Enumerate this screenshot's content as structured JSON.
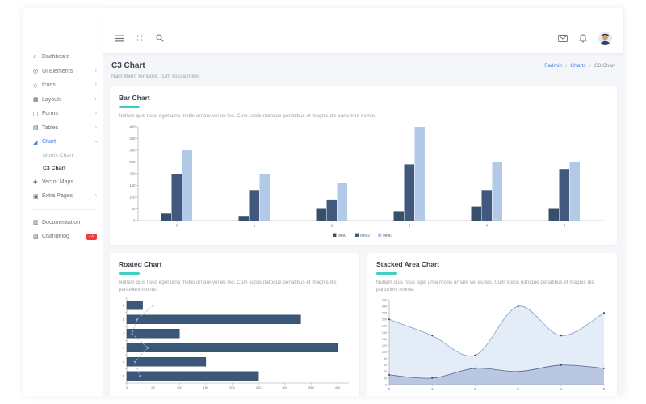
{
  "colors": {
    "accent_teal": "#40cdc6",
    "link_blue": "#4a7fd6",
    "sidebar_active_blue": "#3f78e0",
    "badge_red": "#ef3c3c",
    "content_bg": "#f4f6f9",
    "bar_dark1": "#36506c",
    "bar_dark2": "#41597c",
    "bar_light": "#b3c9e8"
  },
  "topbar": {
    "left_icons": [
      "hamburger-icon",
      "grid-dots-icon",
      "search-icon"
    ],
    "right_icons": [
      "mail-icon",
      "bell-icon",
      "avatar"
    ]
  },
  "sidebar": {
    "items": [
      {
        "label": "Dashboard",
        "icon": "home-icon"
      },
      {
        "label": "UI Elements",
        "icon": "ui-elements-icon",
        "chevron": "right"
      },
      {
        "label": "Icons",
        "icon": "icons-icon",
        "chevron": "right"
      },
      {
        "label": "Layouts",
        "icon": "layouts-icon",
        "chevron": "right"
      },
      {
        "label": "Forms",
        "icon": "forms-icon",
        "chevron": "right"
      },
      {
        "label": "Tables",
        "icon": "tables-icon",
        "chevron": "right"
      },
      {
        "label": "Chart",
        "icon": "chart-icon",
        "chevron": "down",
        "active": true,
        "children": [
          {
            "label": "Morris Chart"
          },
          {
            "label": "C3 Chart",
            "active": true
          }
        ]
      },
      {
        "label": "Vector Maps",
        "icon": "vector-maps-icon"
      },
      {
        "label": "Extra Pages",
        "icon": "extra-pages-icon",
        "chevron": "right"
      }
    ],
    "footer_items": [
      {
        "label": "Documentation",
        "icon": "documentation-icon"
      },
      {
        "label": "Changelog",
        "icon": "changelog-icon",
        "badge": "1.0"
      }
    ]
  },
  "page_header": {
    "title": "C3 Chart",
    "subtitle": "Nam libero tempore, cum soluta nobis",
    "breadcrumb": [
      {
        "label": "Fadmin",
        "link": true
      },
      {
        "label": "Charts",
        "link": true
      },
      {
        "label": "C3 Chart",
        "link": false
      }
    ]
  },
  "cards": [
    {
      "title": "Bar Chart",
      "subtitle": "Nullam quis risus eget urna mollis ornare vel eu leo. Cum sociis natoque penatibus et magnis dis parturient monte."
    },
    {
      "title": "Roated Chart",
      "subtitle": "Nullam quis risus eget urna mollis ornare vel eu leo. Cum sociis natoque penatibus et magnis dis parturient monte."
    },
    {
      "title": "Stacked Area Chart",
      "subtitle": "Nullam quis risus eget urna mollis ornare vel eu leo. Cum sociis natoque penatibus et magnis dis parturient monte."
    }
  ],
  "chart_data": [
    {
      "type": "bar",
      "title": "Bar Chart",
      "categories": [
        "0",
        "1",
        "2",
        "3",
        "4",
        "5"
      ],
      "series": [
        {
          "name": "data1",
          "color": "#36506c",
          "values": [
            30,
            20,
            50,
            40,
            60,
            50
          ]
        },
        {
          "name": "data2",
          "color": "#41597c",
          "values": [
            200,
            130,
            90,
            240,
            130,
            220
          ]
        },
        {
          "name": "data3",
          "color": "#b3c9e8",
          "values": [
            300,
            200,
            160,
            400,
            250,
            250
          ]
        }
      ],
      "ylim": [
        0,
        400
      ],
      "ytick": 50,
      "grid": false,
      "legend_position": "bottom"
    },
    {
      "type": "bar",
      "rotated": true,
      "title": "Roated Chart",
      "categories": [
        "0",
        "1",
        "2",
        "3",
        "4",
        "5"
      ],
      "series": [
        {
          "name": "data1",
          "render": "bar",
          "color": "#3c5878",
          "values": [
            30,
            330,
            100,
            400,
            150,
            250
          ]
        },
        {
          "name": "data2",
          "render": "dashed-line",
          "color": "#9fb9de",
          "values": [
            50,
            20,
            10,
            40,
            15,
            25
          ]
        }
      ],
      "xlim": [
        0,
        400
      ],
      "xtick": 50,
      "grid": false,
      "legend_position": "hidden"
    },
    {
      "type": "area",
      "stacked": true,
      "curve": "spline",
      "title": "Stacked Area Chart",
      "categories": [
        "0",
        "1",
        "2",
        "3",
        "4",
        "5"
      ],
      "series": [
        {
          "name": "data1",
          "color": "#52688f",
          "fill": "#b9c7e2",
          "values": [
            30,
            20,
            50,
            40,
            60,
            50
          ]
        },
        {
          "name": "data2",
          "color": "#7e9cc9",
          "fill": "#e4ecf8",
          "values": [
            170,
            130,
            40,
            200,
            90,
            170
          ]
        }
      ],
      "ylim": [
        0,
        260
      ],
      "ytick": 20,
      "grid": false,
      "legend_position": "hidden",
      "marker_color": "#2e3f5c"
    }
  ]
}
